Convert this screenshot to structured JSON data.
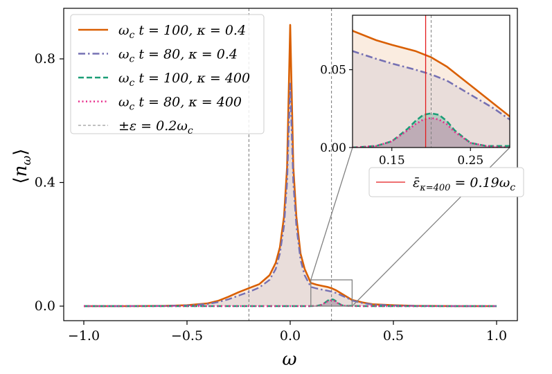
{
  "chart_data": {
    "type": "line",
    "xlabel": "ω",
    "ylabel": "⟨n_ω⟩",
    "xlim": [
      -1.0,
      1.0
    ],
    "ylim": [
      0.0,
      0.92
    ],
    "x_ticks": [
      "−1.0",
      "−0.5",
      "0.0",
      "0.5",
      "1.0"
    ],
    "y_ticks": [
      "0.0",
      "0.4",
      "0.8"
    ],
    "grid": false,
    "legend_position": "upper-left",
    "series": [
      {
        "name": "ω_c t = 100, κ = 0.4",
        "color": "#d95f02",
        "style": "solid",
        "fill": true,
        "x": [
          -1.0,
          -0.8,
          -0.6,
          -0.5,
          -0.4,
          -0.35,
          -0.3,
          -0.25,
          -0.2,
          -0.15,
          -0.1,
          -0.07,
          -0.05,
          -0.03,
          -0.015,
          0.0,
          0.015,
          0.03,
          0.05,
          0.07,
          0.1,
          0.13,
          0.15,
          0.18,
          0.2,
          0.22,
          0.25,
          0.28,
          0.3,
          0.35,
          0.4,
          0.5,
          0.6,
          0.8,
          1.0
        ],
        "values": [
          0.0,
          0.0,
          0.001,
          0.003,
          0.009,
          0.017,
          0.03,
          0.045,
          0.058,
          0.071,
          0.1,
          0.14,
          0.19,
          0.29,
          0.45,
          0.91,
          0.45,
          0.29,
          0.17,
          0.12,
          0.075,
          0.069,
          0.066,
          0.062,
          0.058,
          0.052,
          0.04,
          0.028,
          0.02,
          0.012,
          0.006,
          0.003,
          0.001,
          0.0,
          0.0
        ]
      },
      {
        "name": "ω_c t = 80, κ = 0.4",
        "color": "#7570b3",
        "style": "dashdot",
        "fill": true,
        "x": [
          -1.0,
          -0.8,
          -0.6,
          -0.5,
          -0.4,
          -0.35,
          -0.3,
          -0.25,
          -0.2,
          -0.15,
          -0.1,
          -0.07,
          -0.05,
          -0.03,
          -0.015,
          0.0,
          0.015,
          0.03,
          0.05,
          0.07,
          0.1,
          0.13,
          0.15,
          0.18,
          0.2,
          0.22,
          0.25,
          0.28,
          0.3,
          0.35,
          0.4,
          0.5,
          0.6,
          0.8,
          1.0
        ],
        "values": [
          0.0,
          0.0,
          0.001,
          0.002,
          0.007,
          0.013,
          0.022,
          0.034,
          0.046,
          0.06,
          0.085,
          0.12,
          0.17,
          0.26,
          0.4,
          0.72,
          0.4,
          0.26,
          0.15,
          0.1,
          0.062,
          0.057,
          0.054,
          0.05,
          0.047,
          0.043,
          0.034,
          0.025,
          0.018,
          0.01,
          0.005,
          0.002,
          0.001,
          0.0,
          0.0
        ]
      },
      {
        "name": "ω_c t = 100, κ = 400",
        "color": "#1b9e77",
        "style": "dashed",
        "fill": true,
        "x": [
          -1.0,
          0.1,
          0.13,
          0.15,
          0.17,
          0.18,
          0.19,
          0.2,
          0.21,
          0.22,
          0.23,
          0.25,
          0.27,
          0.3,
          0.35,
          1.0
        ],
        "values": [
          0.0,
          0.0,
          0.001,
          0.004,
          0.012,
          0.017,
          0.021,
          0.022,
          0.021,
          0.017,
          0.011,
          0.003,
          0.001,
          0.001,
          0.0,
          0.0
        ]
      },
      {
        "name": "ω_c t = 80, κ = 400",
        "color": "#e7298a",
        "style": "dotted",
        "fill": true,
        "x": [
          -1.0,
          0.1,
          0.13,
          0.15,
          0.17,
          0.18,
          0.19,
          0.2,
          0.21,
          0.22,
          0.23,
          0.25,
          0.27,
          0.3,
          0.35,
          1.0
        ],
        "values": [
          0.0,
          0.0,
          0.001,
          0.004,
          0.011,
          0.015,
          0.018,
          0.019,
          0.018,
          0.015,
          0.01,
          0.003,
          0.001,
          0.0,
          0.0,
          0.0
        ]
      }
    ],
    "vlines": {
      "name": "±ε = 0.2ω_c",
      "color": "#808080",
      "style": "dashed",
      "x": [
        -0.2,
        0.2
      ]
    },
    "zoom_box": {
      "xlim": [
        0.1,
        0.3
      ],
      "ylim": [
        0.0,
        0.085
      ]
    },
    "inset": {
      "xlim": [
        0.1,
        0.3
      ],
      "ylim": [
        0.0,
        0.085
      ],
      "x_ticks": [
        "0.15",
        "0.25"
      ],
      "y_ticks": [
        "0.00",
        "0.05"
      ],
      "vline": {
        "x": 0.193,
        "color": "#e41a1c",
        "label": "ε̄_{κ=400} = 0.19ω_c"
      },
      "gray_vline_x": 0.2
    }
  }
}
